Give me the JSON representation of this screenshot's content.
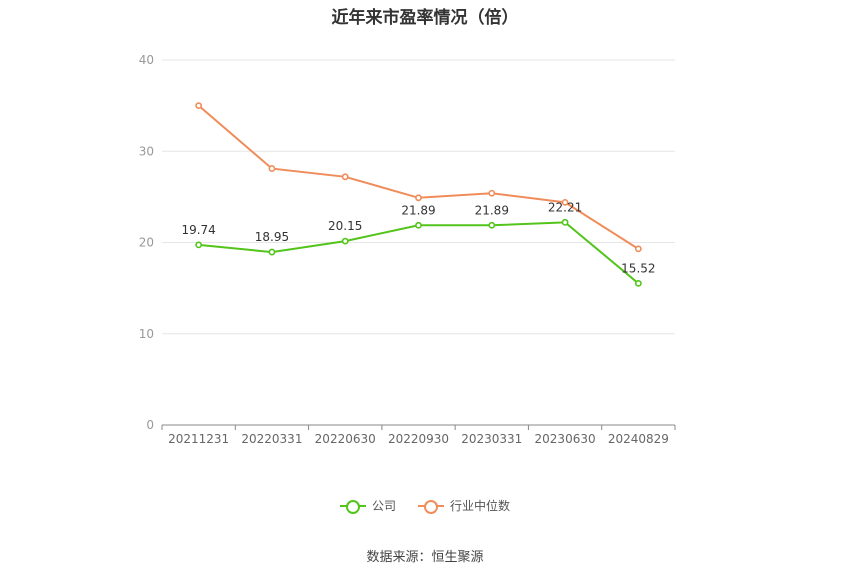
{
  "title": "近年来市盈率情况（倍）",
  "source_note": "数据来源：恒生聚源",
  "colors": {
    "company": "#52c41a",
    "industry": "#f08c5a",
    "grid": "#e6e6e6",
    "axis": "#999999"
  },
  "chart_data": {
    "type": "line",
    "categories": [
      "20211231",
      "20220331",
      "20220630",
      "20220930",
      "20230331",
      "20230630",
      "20240829"
    ],
    "ylim": [
      0,
      40
    ],
    "yticks": [
      0,
      10,
      20,
      30,
      40
    ],
    "grid": true,
    "legend_position": "bottom",
    "series": [
      {
        "name": "公司",
        "values": [
          19.74,
          18.95,
          20.15,
          21.89,
          21.89,
          22.21,
          15.52
        ],
        "data_labels": [
          "19.74",
          "18.95",
          "20.15",
          "21.89",
          "21.89",
          "22.21",
          "15.52"
        ]
      },
      {
        "name": "行业中位数",
        "values": [
          35.0,
          28.1,
          27.2,
          24.9,
          25.4,
          24.4,
          19.3
        ]
      }
    ]
  }
}
